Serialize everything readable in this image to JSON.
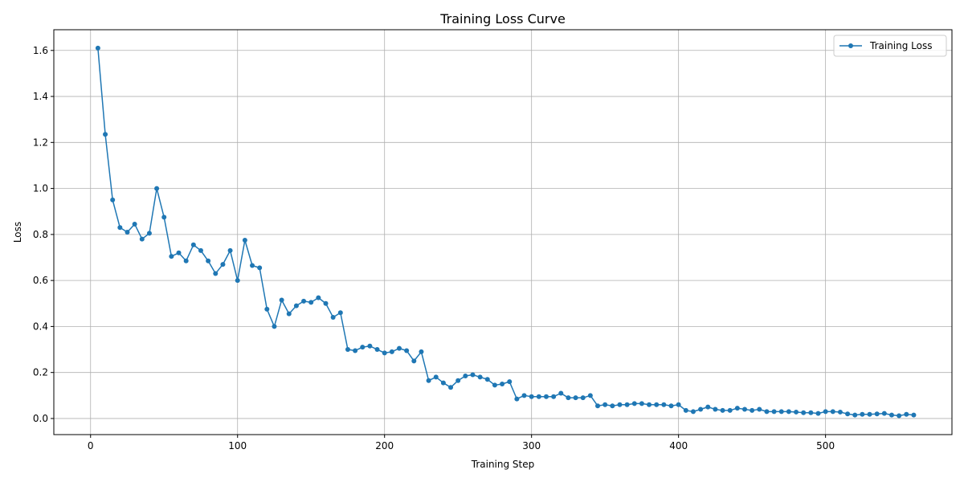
{
  "chart_data": {
    "type": "line",
    "title": "Training Loss Curve",
    "xlabel": "Training Step",
    "ylabel": "Loss",
    "xlim": [
      -25,
      586
    ],
    "ylim": [
      -0.07,
      1.69
    ],
    "xticks": [
      0,
      100,
      200,
      300,
      400,
      500
    ],
    "yticks": [
      0.0,
      0.2,
      0.4,
      0.6,
      0.8,
      1.0,
      1.2,
      1.4,
      1.6
    ],
    "ytick_labels": [
      "0.0",
      "0.2",
      "0.4",
      "0.6",
      "0.8",
      "1.0",
      "1.2",
      "1.4",
      "1.6"
    ],
    "grid": true,
    "legend_position": "top-right",
    "series": [
      {
        "name": "Training Loss",
        "color": "#1f77b4",
        "marker": "circle",
        "x": [
          5,
          10,
          15,
          20,
          25,
          30,
          35,
          40,
          45,
          50,
          55,
          60,
          65,
          70,
          75,
          80,
          85,
          90,
          95,
          100,
          105,
          110,
          115,
          120,
          125,
          130,
          135,
          140,
          145,
          150,
          155,
          160,
          165,
          170,
          175,
          180,
          185,
          190,
          195,
          200,
          205,
          210,
          215,
          220,
          225,
          230,
          235,
          240,
          245,
          250,
          255,
          260,
          265,
          270,
          275,
          280,
          285,
          290,
          295,
          300,
          305,
          310,
          315,
          320,
          325,
          330,
          335,
          340,
          345,
          350,
          355,
          360,
          365,
          370,
          375,
          380,
          385,
          390,
          395,
          400,
          405,
          410,
          415,
          420,
          425,
          430,
          435,
          440,
          445,
          450,
          455,
          460,
          465,
          470,
          475,
          480,
          485,
          490,
          495,
          500,
          505,
          510,
          515,
          520,
          525,
          530,
          535,
          540,
          545,
          550,
          555,
          560
        ],
        "y": [
          1.61,
          1.235,
          0.95,
          0.83,
          0.81,
          0.845,
          0.78,
          0.805,
          1.0,
          0.875,
          0.705,
          0.72,
          0.685,
          0.755,
          0.73,
          0.685,
          0.63,
          0.67,
          0.73,
          0.6,
          0.775,
          0.665,
          0.655,
          0.475,
          0.4,
          0.515,
          0.455,
          0.49,
          0.51,
          0.505,
          0.525,
          0.5,
          0.44,
          0.46,
          0.3,
          0.295,
          0.31,
          0.315,
          0.3,
          0.285,
          0.29,
          0.305,
          0.295,
          0.25,
          0.29,
          0.165,
          0.18,
          0.155,
          0.135,
          0.165,
          0.185,
          0.19,
          0.18,
          0.17,
          0.145,
          0.15,
          0.16,
          0.085,
          0.1,
          0.095,
          0.095,
          0.095,
          0.095,
          0.11,
          0.09,
          0.09,
          0.09,
          0.1,
          0.055,
          0.06,
          0.055,
          0.06,
          0.06,
          0.065,
          0.065,
          0.06,
          0.06,
          0.06,
          0.055,
          0.06,
          0.035,
          0.03,
          0.04,
          0.05,
          0.04,
          0.035,
          0.035,
          0.045,
          0.04,
          0.035,
          0.04,
          0.03,
          0.03,
          0.03,
          0.03,
          0.028,
          0.025,
          0.025,
          0.022,
          0.03,
          0.03,
          0.028,
          0.02,
          0.015,
          0.018,
          0.018,
          0.02,
          0.022,
          0.015,
          0.012,
          0.018,
          0.015
        ]
      }
    ]
  }
}
